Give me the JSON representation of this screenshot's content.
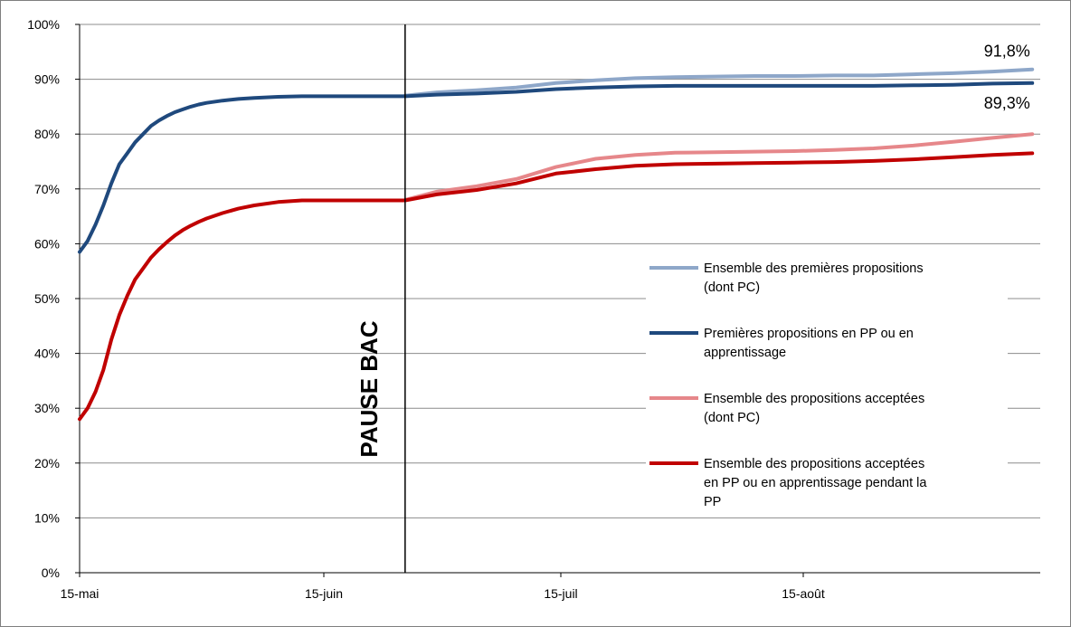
{
  "chart_data": {
    "type": "line",
    "title": "",
    "xlabel": "",
    "ylabel": "",
    "x_tick_labels": [
      "15-mai",
      "15-juin",
      "15-juil",
      "15-août"
    ],
    "y_ticks": [
      0,
      10,
      20,
      30,
      40,
      50,
      60,
      70,
      80,
      90,
      100
    ],
    "y_tick_labels": [
      "0%",
      "10%",
      "20%",
      "30%",
      "40%",
      "50%",
      "60%",
      "70%",
      "80%",
      "90%",
      "100%"
    ],
    "xlim": [
      0,
      121
    ],
    "ylim": [
      0,
      100
    ],
    "grid": true,
    "legend_position": "right",
    "annotation": {
      "label": "PAUSE BAC",
      "x": 41
    },
    "series": [
      {
        "name": "Ensemble des premières propositions (dont PC)",
        "color": "#8EA7C9",
        "x": [
          41,
          45,
          50,
          55,
          60,
          65,
          70,
          75,
          80,
          85,
          90,
          95,
          100,
          105,
          110,
          115,
          120
        ],
        "values": [
          87.0,
          87.6,
          88.0,
          88.5,
          89.3,
          89.8,
          90.2,
          90.4,
          90.5,
          90.6,
          90.6,
          90.7,
          90.7,
          90.9,
          91.1,
          91.4,
          91.8
        ],
        "end_label": "91,8%"
      },
      {
        "name": "Premières propositions en PP ou en apprentissage",
        "color": "#1F497D",
        "x": [
          0,
          1,
          2,
          3,
          4,
          5,
          6,
          7,
          8,
          9,
          10,
          11,
          12,
          13,
          14,
          15,
          16,
          18,
          20,
          22,
          25,
          28,
          32,
          36,
          41,
          45,
          50,
          55,
          60,
          65,
          70,
          75,
          80,
          85,
          90,
          95,
          100,
          105,
          110,
          115,
          120
        ],
        "values": [
          58.5,
          60.5,
          63.5,
          67.0,
          71.0,
          74.5,
          76.5,
          78.5,
          80.0,
          81.5,
          82.5,
          83.3,
          84.0,
          84.5,
          85.0,
          85.4,
          85.7,
          86.1,
          86.4,
          86.6,
          86.8,
          86.9,
          86.9,
          86.9,
          86.9,
          87.2,
          87.4,
          87.7,
          88.2,
          88.5,
          88.7,
          88.8,
          88.8,
          88.8,
          88.8,
          88.8,
          88.8,
          88.9,
          89.0,
          89.2,
          89.3
        ],
        "end_label": "89,3%"
      },
      {
        "name": "Ensemble des propositions acceptées (dont PC)",
        "color": "#E6878A",
        "x": [
          41,
          45,
          50,
          55,
          60,
          65,
          70,
          75,
          80,
          85,
          90,
          95,
          100,
          105,
          110,
          115,
          120
        ],
        "values": [
          68.0,
          69.5,
          70.5,
          71.8,
          74.0,
          75.5,
          76.2,
          76.6,
          76.7,
          76.8,
          76.9,
          77.1,
          77.4,
          77.9,
          78.6,
          79.3,
          80.0
        ]
      },
      {
        "name": "Ensemble des propositions acceptées en PP ou en apprentissage pendant la PP",
        "color": "#C00000",
        "x": [
          0,
          1,
          2,
          3,
          4,
          5,
          6,
          7,
          8,
          9,
          10,
          11,
          12,
          13,
          14,
          15,
          16,
          18,
          20,
          22,
          25,
          28,
          32,
          36,
          41,
          45,
          50,
          55,
          60,
          65,
          70,
          75,
          80,
          85,
          90,
          95,
          100,
          105,
          110,
          115,
          120
        ],
        "values": [
          28.0,
          30.0,
          33.0,
          37.0,
          42.5,
          47.0,
          50.5,
          53.5,
          55.5,
          57.5,
          59.0,
          60.3,
          61.5,
          62.5,
          63.3,
          64.0,
          64.6,
          65.6,
          66.4,
          67.0,
          67.6,
          67.9,
          67.9,
          67.9,
          67.9,
          69.0,
          69.8,
          71.0,
          72.8,
          73.6,
          74.2,
          74.5,
          74.6,
          74.7,
          74.8,
          74.9,
          75.1,
          75.4,
          75.8,
          76.2,
          76.5
        ]
      }
    ]
  }
}
